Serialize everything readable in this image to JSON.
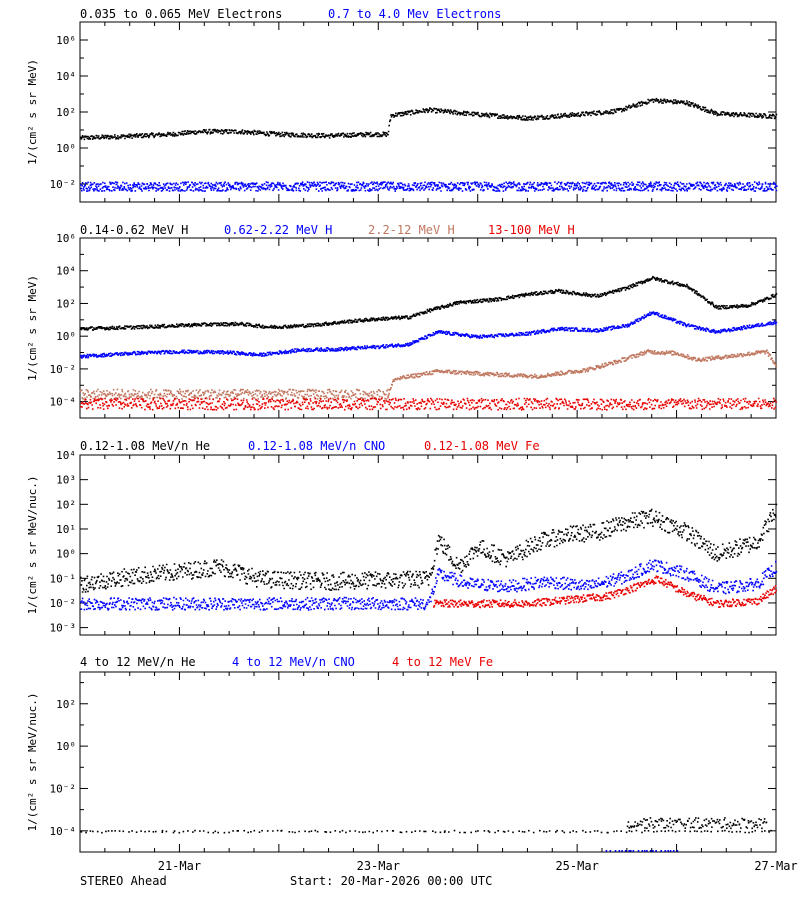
{
  "colors": {
    "black": "#000000",
    "blue": "#0000ff",
    "tan": "#c07860",
    "red": "#e80000"
  },
  "chart_data": [
    {
      "type": "scatter",
      "ylabel": "1/(cm² s sr MeV)",
      "ylim_log10": [
        -3,
        7
      ],
      "ticks": [
        {
          "e": -2,
          "label": "10⁻²"
        },
        {
          "e": 0,
          "label": "10⁰"
        },
        {
          "e": 2,
          "label": "10²"
        },
        {
          "e": 4,
          "label": "10⁴"
        },
        {
          "e": 6,
          "label": "10⁶"
        }
      ],
      "series": [
        {
          "name": "0.035 to 0.065 MeV Electrons",
          "color": "#000000",
          "style": "trace",
          "scatter": 0.12,
          "points": [
            [
              0,
              0.6
            ],
            [
              0.5,
              0.7
            ],
            [
              0.9,
              0.8
            ],
            [
              1.2,
              0.95
            ],
            [
              1.6,
              0.95
            ],
            [
              2.0,
              0.8
            ],
            [
              2.5,
              0.72
            ],
            [
              2.9,
              0.8
            ],
            [
              3.09,
              0.8
            ],
            [
              3.12,
              1.85
            ],
            [
              3.5,
              2.15
            ],
            [
              4.0,
              1.9
            ],
            [
              4.5,
              1.7
            ],
            [
              5.0,
              1.9
            ],
            [
              5.4,
              2.1
            ],
            [
              5.75,
              2.7
            ],
            [
              6.1,
              2.55
            ],
            [
              6.4,
              1.95
            ],
            [
              7.0,
              1.8
            ]
          ]
        },
        {
          "name": "0.7 to 4.0 Mev Electrons",
          "color": "#0000ff",
          "style": "noise",
          "y": -2.1,
          "spread": 0.25,
          "density": 4
        }
      ]
    },
    {
      "type": "scatter",
      "ylabel": "1/(cm² s sr MeV)",
      "ylim_log10": [
        -5,
        6
      ],
      "ticks": [
        {
          "e": -4,
          "label": "10⁻⁴"
        },
        {
          "e": -2,
          "label": "10⁻²"
        },
        {
          "e": 0,
          "label": "10⁰"
        },
        {
          "e": 2,
          "label": "10²"
        },
        {
          "e": 4,
          "label": "10⁴"
        },
        {
          "e": 6,
          "label": "10⁶"
        }
      ],
      "series": [
        {
          "name": "0.14-0.62 MeV H",
          "color": "#000000",
          "style": "trace",
          "scatter": 0.1,
          "points": [
            [
              0,
              0.5
            ],
            [
              0.6,
              0.6
            ],
            [
              1.2,
              0.75
            ],
            [
              1.6,
              0.8
            ],
            [
              1.9,
              0.6
            ],
            [
              2.3,
              0.7
            ],
            [
              2.7,
              0.95
            ],
            [
              3.0,
              1.1
            ],
            [
              3.3,
              1.2
            ],
            [
              3.5,
              1.6
            ],
            [
              3.8,
              2.1
            ],
            [
              4.2,
              2.3
            ],
            [
              4.5,
              2.6
            ],
            [
              4.8,
              2.8
            ],
            [
              5.2,
              2.5
            ],
            [
              5.5,
              3.0
            ],
            [
              5.75,
              3.6
            ],
            [
              6.1,
              3.1
            ],
            [
              6.4,
              1.8
            ],
            [
              6.7,
              1.9
            ],
            [
              6.85,
              2.2
            ],
            [
              7.0,
              2.6
            ]
          ]
        },
        {
          "name": "0.62-2.22 MeV H",
          "color": "#0000ff",
          "style": "trace",
          "scatter": 0.1,
          "points": [
            [
              0,
              -1.2
            ],
            [
              0.5,
              -1.0
            ],
            [
              1.0,
              -0.9
            ],
            [
              1.5,
              -0.95
            ],
            [
              1.8,
              -1.1
            ],
            [
              2.2,
              -0.8
            ],
            [
              2.6,
              -0.75
            ],
            [
              3.0,
              -0.6
            ],
            [
              3.3,
              -0.45
            ],
            [
              3.6,
              0.3
            ],
            [
              4.0,
              0.0
            ],
            [
              4.5,
              0.2
            ],
            [
              4.8,
              0.5
            ],
            [
              5.2,
              0.4
            ],
            [
              5.5,
              0.7
            ],
            [
              5.75,
              1.5
            ],
            [
              6.1,
              0.7
            ],
            [
              6.4,
              0.3
            ],
            [
              6.8,
              0.7
            ],
            [
              7.0,
              0.9
            ]
          ]
        },
        {
          "name": "2.2-12 MeV H",
          "color": "#c07860",
          "style": "trace",
          "scatter": 0.12,
          "points": [
            [
              3.09,
              -3.6
            ],
            [
              3.15,
              -2.6
            ],
            [
              3.6,
              -2.1
            ],
            [
              4.2,
              -2.3
            ],
            [
              4.6,
              -2.4
            ],
            [
              5.1,
              -2.0
            ],
            [
              5.4,
              -1.5
            ],
            [
              5.7,
              -0.9
            ],
            [
              6.0,
              -1.0
            ],
            [
              6.2,
              -1.4
            ],
            [
              6.5,
              -1.2
            ],
            [
              6.9,
              -0.9
            ],
            [
              7.0,
              -1.8
            ]
          ]
        },
        {
          "name": "",
          "color": "#c07860",
          "style": "noise",
          "y": -3.5,
          "spread": 0.3,
          "x0": 0,
          "x1": 3.1,
          "density": 3
        },
        {
          "name": "13-100 MeV H",
          "color": "#e80000",
          "style": "noise",
          "y": -4.1,
          "spread": 0.35,
          "density": 3
        }
      ]
    },
    {
      "type": "scatter",
      "ylabel": "1/(cm² s sr MeV/nuc.)",
      "ylim_log10": [
        -3.3,
        4
      ],
      "ticks": [
        {
          "e": -3,
          "label": "10⁻³"
        },
        {
          "e": -2,
          "label": "10⁻²"
        },
        {
          "e": -1,
          "label": "10⁻¹"
        },
        {
          "e": 0,
          "label": "10⁰"
        },
        {
          "e": 1,
          "label": "10¹"
        },
        {
          "e": 2,
          "label": "10²"
        },
        {
          "e": 3,
          "label": "10³"
        },
        {
          "e": 4,
          "label": "10⁴"
        }
      ],
      "series": [
        {
          "name": "0.12-1.08 MeV/n He",
          "color": "#000000",
          "style": "trace",
          "scatter": 0.35,
          "points": [
            [
              0,
              -1.2
            ],
            [
              0.5,
              -0.9
            ],
            [
              1.0,
              -0.7
            ],
            [
              1.4,
              -0.5
            ],
            [
              1.8,
              -1.0
            ],
            [
              2.5,
              -1.1
            ],
            [
              3.5,
              -1.0
            ],
            [
              3.6,
              0.6
            ],
            [
              3.8,
              -0.5
            ],
            [
              4.0,
              0.3
            ],
            [
              4.3,
              -0.2
            ],
            [
              4.6,
              0.5
            ],
            [
              4.9,
              0.8
            ],
            [
              5.2,
              0.9
            ],
            [
              5.5,
              1.3
            ],
            [
              5.75,
              1.5
            ],
            [
              6.1,
              0.9
            ],
            [
              6.4,
              0.0
            ],
            [
              6.8,
              0.5
            ],
            [
              7.0,
              1.8
            ]
          ]
        },
        {
          "name": "0.12-1.08 MeV/n CNO",
          "color": "#0000ff",
          "style": "trace",
          "scatter": 0.25,
          "points": [
            [
              0,
              -2.0
            ],
            [
              1.5,
              -2.0
            ],
            [
              3.5,
              -2.0
            ],
            [
              3.6,
              -0.8
            ],
            [
              3.9,
              -1.2
            ],
            [
              4.3,
              -1.3
            ],
            [
              4.7,
              -1.1
            ],
            [
              5.1,
              -1.3
            ],
            [
              5.5,
              -0.9
            ],
            [
              5.75,
              -0.4
            ],
            [
              6.1,
              -0.8
            ],
            [
              6.4,
              -1.4
            ],
            [
              6.8,
              -1.2
            ],
            [
              7.0,
              -0.5
            ]
          ]
        },
        {
          "name": "0.12-1.08 MeV Fe",
          "color": "#e80000",
          "style": "trace",
          "scatter": 0.15,
          "points": [
            [
              3.55,
              -2.0
            ],
            [
              4.5,
              -2.0
            ],
            [
              5.3,
              -1.7
            ],
            [
              5.6,
              -1.3
            ],
            [
              5.8,
              -1.0
            ],
            [
              6.1,
              -1.6
            ],
            [
              6.4,
              -2.0
            ],
            [
              6.8,
              -1.9
            ],
            [
              7.0,
              -1.4
            ]
          ]
        }
      ]
    },
    {
      "type": "scatter",
      "ylabel": "1/(cm² s sr MeV/nuc.)",
      "ylim_log10": [
        -5,
        3.5
      ],
      "ticks": [
        {
          "e": -4,
          "label": "10⁻⁴"
        },
        {
          "e": -2,
          "label": "10⁻²"
        },
        {
          "e": 0,
          "label": "10⁰"
        },
        {
          "e": 2,
          "label": "10²"
        }
      ],
      "series": [
        {
          "name": "4 to 12 MeV/n He",
          "color": "#000000",
          "style": "sparse",
          "y": -4.0,
          "spread": 0.05,
          "density": 0.5
        },
        {
          "name": "",
          "color": "#000000",
          "style": "sparse",
          "y": -3.6,
          "spread": 0.25,
          "x0": 5.5,
          "x1": 6.9,
          "density": 2
        },
        {
          "name": "4 to 12 MeV/n CNO",
          "color": "#0000ff",
          "style": "sparse",
          "y": -4.95,
          "spread": 0.02,
          "x0": 5.3,
          "x1": 6.0,
          "density": 0.6
        },
        {
          "name": "4 to 12 MeV Fe",
          "color": "#e80000",
          "style": "none"
        }
      ]
    }
  ],
  "x_axis": {
    "range_days": [
      0,
      7
    ],
    "tick_labels": [
      {
        "day": 1,
        "label": "21-Mar"
      },
      {
        "day": 3,
        "label": "23-Mar"
      },
      {
        "day": 5,
        "label": "25-Mar"
      },
      {
        "day": 7,
        "label": "27-Mar"
      }
    ]
  },
  "footer": {
    "spacecraft": "STEREO Ahead",
    "start": "Start: 20-Mar-2026 00:00 UTC"
  }
}
